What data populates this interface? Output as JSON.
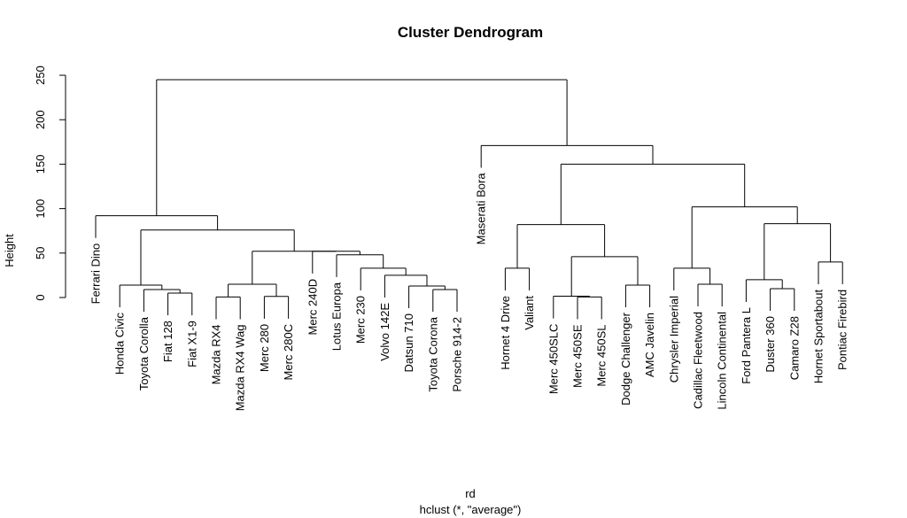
{
  "chart_data": {
    "type": "dendrogram",
    "title": "Cluster Dendrogram",
    "ylabel": "Height",
    "xlabel": "rd",
    "sub": "hclust (*, \"average\")",
    "ylim": [
      0,
      250
    ],
    "yticks": [
      "0",
      "50",
      "100",
      "150",
      "200",
      "250"
    ],
    "leaves": [
      "Ferrari Dino",
      "Honda Civic",
      "Toyota Corolla",
      "Fiat 128",
      "Fiat X1-9",
      "Mazda RX4",
      "Mazda RX4 Wag",
      "Merc 280",
      "Merc 280C",
      "Merc 240D",
      "Lotus Europa",
      "Merc 230",
      "Volvo 142E",
      "Datsun 710",
      "Toyota Corona",
      "Porsche 914-2",
      "Maserati Bora",
      "Hornet 4 Drive",
      "Valiant",
      "Merc 450SLC",
      "Merc 450SE",
      "Merc 450SL",
      "Dodge Challenger",
      "AMC Javelin",
      "Chrysler Imperial",
      "Cadillac Fleetwood",
      "Lincoln Continental",
      "Ford Pantera L",
      "Duster 360",
      "Camaro Z28",
      "Hornet Sportabout",
      "Pontiac Firebird"
    ],
    "merges": [
      {
        "left": "Fiat 128",
        "right": "Fiat X1-9",
        "height": 5
      },
      {
        "left": "Toyota Corolla",
        "right": 0,
        "height": 9
      },
      {
        "left": "Honda Civic",
        "right": 1,
        "height": 14
      },
      {
        "left": "Mazda RX4",
        "right": "Mazda RX4 Wag",
        "height": 0.6
      },
      {
        "left": "Merc 280",
        "right": "Merc 280C",
        "height": 1.2
      },
      {
        "left": 3,
        "right": 4,
        "height": 15
      },
      {
        "left": "Toyota Corona",
        "right": "Porsche 914-2",
        "height": 9
      },
      {
        "left": "Datsun 710",
        "right": 6,
        "height": 13
      },
      {
        "left": "Volvo 142E",
        "right": 7,
        "height": 25
      },
      {
        "left": "Merc 230",
        "right": 8,
        "height": 33
      },
      {
        "left": "Lotus Europa",
        "right": 9,
        "height": 48
      },
      {
        "left": "Merc 240D",
        "right": 10,
        "height": 52
      },
      {
        "left": 5,
        "right": 11,
        "height": 52
      },
      {
        "left": 2,
        "right": 12,
        "height": 76
      },
      {
        "left": "Ferrari Dino",
        "right": 13,
        "height": 92
      },
      {
        "left": "Hornet 4 Drive",
        "right": "Valiant",
        "height": 33
      },
      {
        "left": "Merc 450SE",
        "right": "Merc 450SL",
        "height": 0.6
      },
      {
        "left": "Merc 450SLC",
        "right": 16,
        "height": 1.5
      },
      {
        "left": "Dodge Challenger",
        "right": "AMC Javelin",
        "height": 14
      },
      {
        "left": 17,
        "right": 18,
        "height": 46
      },
      {
        "left": 15,
        "right": 19,
        "height": 82
      },
      {
        "left": "Cadillac Fleetwood",
        "right": "Lincoln Continental",
        "height": 15
      },
      {
        "left": "Chrysler Imperial",
        "right": 21,
        "height": 33
      },
      {
        "left": "Camaro Z28",
        "right": "Duster 360",
        "height": 10
      },
      {
        "left": "Ford Pantera L",
        "right": 23,
        "height": 20
      },
      {
        "left": "Hornet Sportabout",
        "right": "Pontiac Firebird",
        "height": 40
      },
      {
        "left": 24,
        "right": 25,
        "height": 83
      },
      {
        "left": 22,
        "right": 26,
        "height": 102
      },
      {
        "left": 20,
        "right": 27,
        "height": 150
      },
      {
        "left": "Maserati Bora",
        "right": 28,
        "height": 171
      },
      {
        "left": 14,
        "right": 29,
        "height": 245
      }
    ]
  }
}
